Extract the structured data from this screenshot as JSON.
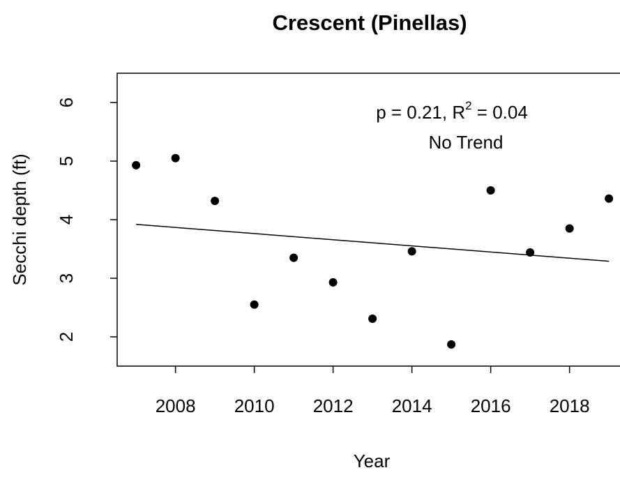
{
  "chart_data": {
    "type": "scatter",
    "title": "Crescent (Pinellas)",
    "x_label": "Year",
    "y_label": "Secchi depth (ft)",
    "x": [
      2007,
      2008,
      2009,
      2010,
      2011,
      2012,
      2013,
      2014,
      2015,
      2016,
      2017,
      2018,
      2019
    ],
    "values": [
      4.93,
      5.05,
      4.32,
      2.55,
      3.35,
      2.93,
      2.31,
      3.46,
      1.87,
      4.5,
      3.44,
      3.85,
      4.36
    ],
    "color": "#000000",
    "trend": {
      "x": [
        2007,
        2019
      ],
      "values": [
        3.92,
        3.29
      ]
    },
    "annotation": {
      "stat": "p = 0.21, R",
      "sup": "2",
      "stat_end": " = 0.04",
      "trend_text": "No Trend"
    },
    "xlim": [
      2006.52,
      2019.48
    ],
    "xticks": [
      2008,
      2010,
      2012,
      2014,
      2016,
      2018
    ],
    "ylim": [
      1.5,
      6.5
    ],
    "yticks": [
      2,
      3,
      4,
      5,
      6
    ]
  }
}
